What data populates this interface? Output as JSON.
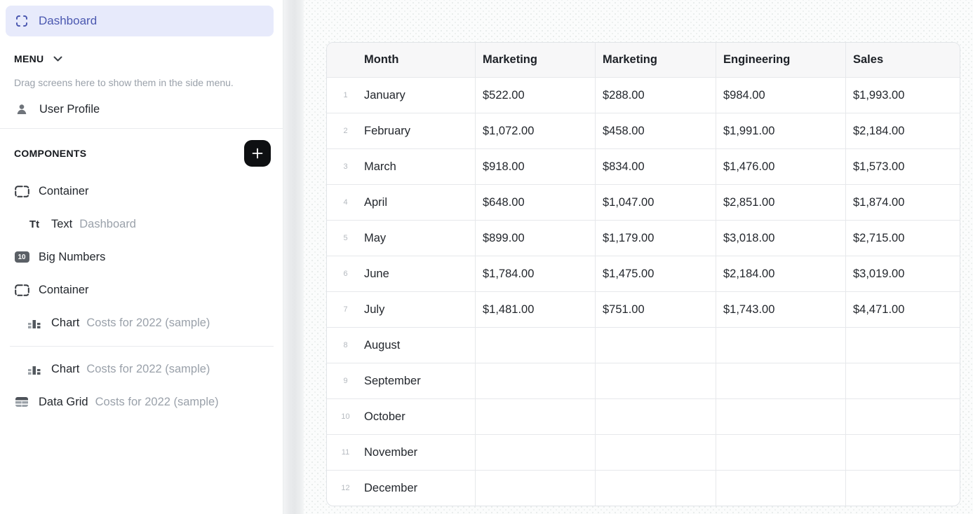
{
  "colors": {
    "accent_indigo": "#4b58b0",
    "active_item_bg": "#e7eafb",
    "sidebar_bg": "#ffffff",
    "preview_bg": "#fbfcfc",
    "plus_button_bg": "#0e1012",
    "table_header_bg": "#f7f7f8",
    "table_border": "#e6e8eb",
    "text_gray": "#9aa1aa"
  },
  "sidebar": {
    "active_screen": {
      "label": "Dashboard"
    },
    "menu_section": {
      "label": "MENU",
      "hint": "Drag screens here to show them in the side menu."
    },
    "menu_items": [
      {
        "label": "User Profile"
      }
    ],
    "components_section": {
      "label": "COMPONENTS"
    },
    "tree": [
      {
        "label": "Container",
        "secondary": ""
      },
      {
        "label": "Text",
        "secondary": "Dashboard"
      },
      {
        "label": "Big Numbers",
        "secondary": ""
      },
      {
        "label": "Container",
        "secondary": ""
      },
      {
        "label": "Chart",
        "secondary": "Costs for 2022 (sample)"
      },
      {
        "label": "Chart",
        "secondary": "Costs for 2022 (sample)"
      },
      {
        "label": "Data Grid",
        "secondary": "Costs for 2022 (sample)"
      }
    ],
    "big_numbers_badge": "10",
    "text_icon_glyph": "Tt"
  },
  "main": {
    "table": {
      "columns": [
        "Month",
        "Marketing",
        "Marketing",
        "Engineering",
        "Sales"
      ],
      "rows": [
        {
          "num": "1",
          "month": "January",
          "values": [
            "$522.00",
            "$288.00",
            "$984.00",
            "$1,993.00"
          ]
        },
        {
          "num": "2",
          "month": "February",
          "values": [
            "$1,072.00",
            "$458.00",
            "$1,991.00",
            "$2,184.00"
          ]
        },
        {
          "num": "3",
          "month": "March",
          "values": [
            "$918.00",
            "$834.00",
            "$1,476.00",
            "$1,573.00"
          ]
        },
        {
          "num": "4",
          "month": "April",
          "values": [
            "$648.00",
            "$1,047.00",
            "$2,851.00",
            "$1,874.00"
          ]
        },
        {
          "num": "5",
          "month": "May",
          "values": [
            "$899.00",
            "$1,179.00",
            "$3,018.00",
            "$2,715.00"
          ]
        },
        {
          "num": "6",
          "month": "June",
          "values": [
            "$1,784.00",
            "$1,475.00",
            "$2,184.00",
            "$3,019.00"
          ]
        },
        {
          "num": "7",
          "month": "July",
          "values": [
            "$1,481.00",
            "$751.00",
            "$1,743.00",
            "$4,471.00"
          ]
        },
        {
          "num": "8",
          "month": "August",
          "values": [
            "",
            "",
            "",
            ""
          ]
        },
        {
          "num": "9",
          "month": "September",
          "values": [
            "",
            "",
            "",
            ""
          ]
        },
        {
          "num": "10",
          "month": "October",
          "values": [
            "",
            "",
            "",
            ""
          ]
        },
        {
          "num": "11",
          "month": "November",
          "values": [
            "",
            "",
            "",
            ""
          ]
        },
        {
          "num": "12",
          "month": "December",
          "values": [
            "",
            "",
            "",
            ""
          ]
        }
      ]
    }
  }
}
